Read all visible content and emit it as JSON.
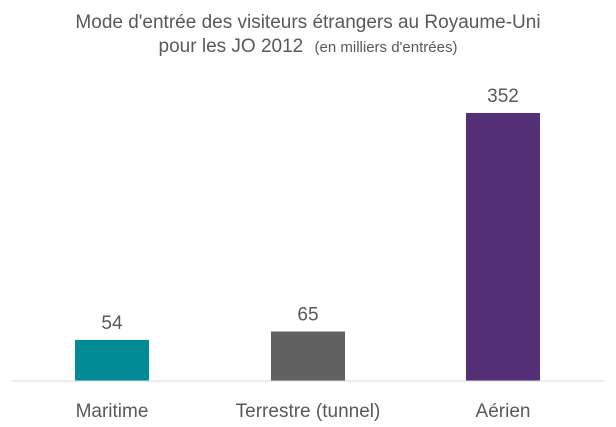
{
  "chart_data": {
    "type": "bar",
    "title": "Mode d'entrée des visiteurs étrangers au Royaume-Uni",
    "subtitle_main": "pour les JO 2012",
    "subtitle_small": "(en milliers d'entrées)",
    "categories": [
      "Maritime",
      "Terrestre (tunnel)",
      "Aérien"
    ],
    "values": [
      54,
      65,
      352
    ],
    "value_labels": [
      "54",
      "65",
      "352"
    ],
    "colors": [
      "#008B95",
      "#616161",
      "#553077"
    ],
    "xlabel": "",
    "ylabel": "",
    "ylim": [
      0,
      352
    ],
    "grid": false,
    "legend": "none"
  }
}
